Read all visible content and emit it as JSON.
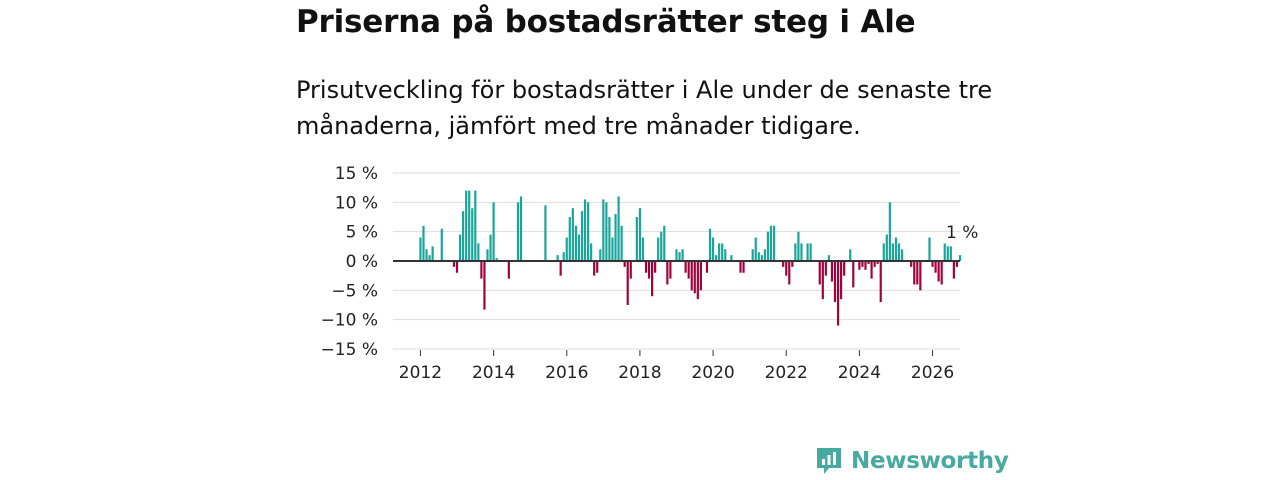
{
  "title": "Priserna på bostadsrätter steg i Ale",
  "subtitle": "Prisutveckling för bostadsrätter i Ale under de senaste tre månaderna, jämfört med tre månader tidigare.",
  "brand": {
    "name": "Newsworthy",
    "icon": "newsworthy-logo-icon"
  },
  "colors": {
    "positive": "#1aa59a",
    "negative": "#a0033b",
    "grid": "#dddddd",
    "zero": "#333333",
    "brand": "#48a9a1"
  },
  "chart_data": {
    "type": "bar",
    "title": "Priserna på bostadsrätter steg i Ale",
    "xlabel": "",
    "ylabel": "",
    "x_start": 2012.0,
    "x_step": 0.08333,
    "xlim": [
      2011.25,
      2026.75
    ],
    "ylim": [
      -15,
      15
    ],
    "yticks": [
      15,
      10,
      5,
      0,
      -5,
      -10,
      -15
    ],
    "ytick_labels": [
      "15 %",
      "10 %",
      "5 %",
      "0 %",
      "−5 %",
      "−10 %",
      "−15 %"
    ],
    "xticks": [
      2012,
      2014,
      2016,
      2018,
      2020,
      2022,
      2024,
      2026
    ],
    "xtick_labels": [
      "2012",
      "2014",
      "2016",
      "2018",
      "2020",
      "2022",
      "2024",
      "2026"
    ],
    "annotation": {
      "text": "1 %"
    },
    "values": [
      4,
      6,
      2,
      1,
      2.5,
      0,
      0,
      5.5,
      0,
      0,
      0,
      -1,
      -2,
      4.5,
      8.5,
      12,
      12,
      9,
      12,
      3,
      -3,
      -8.3,
      2,
      4.5,
      10,
      0.5,
      0,
      0,
      0,
      -3,
      0,
      0,
      10,
      11,
      0,
      0,
      0,
      0,
      0,
      0,
      0,
      9.5,
      0,
      0,
      0,
      1,
      -2.5,
      1.5,
      4,
      7.5,
      9,
      6,
      4.5,
      8.5,
      10.5,
      10,
      3,
      -2.5,
      -2,
      2,
      10.5,
      10,
      7.5,
      4,
      8,
      11,
      6,
      -1,
      -7.5,
      -3,
      0,
      7.5,
      9,
      4,
      -2,
      -3,
      -6,
      -2,
      4,
      5,
      6,
      -4,
      -3,
      0,
      2,
      1.5,
      2,
      -2,
      -3,
      -5,
      -5.5,
      -6.5,
      -5,
      0,
      -2,
      5.5,
      4,
      1,
      3,
      3,
      2,
      0,
      1,
      0,
      0,
      -2,
      -2,
      0,
      0,
      2,
      4,
      1.5,
      1,
      2,
      5,
      6,
      6,
      0,
      0,
      -1,
      -2.5,
      -4,
      -1,
      3,
      5,
      3,
      0,
      3,
      3,
      0,
      0,
      -4,
      -6.5,
      -2.5,
      1,
      -3.5,
      -7,
      -11,
      -6.5,
      -2.5,
      0,
      2,
      -4.5,
      0,
      -1.5,
      -1,
      -1.5,
      -0.5,
      -3,
      -1,
      -0.5,
      -7,
      3,
      4.5,
      10,
      3,
      4,
      3,
      2,
      0,
      0,
      -1,
      -4,
      -4,
      -5,
      0,
      0,
      4,
      -1,
      -2,
      -3.5,
      -4,
      3,
      2.5,
      2.5,
      -3,
      -1,
      1
    ]
  }
}
